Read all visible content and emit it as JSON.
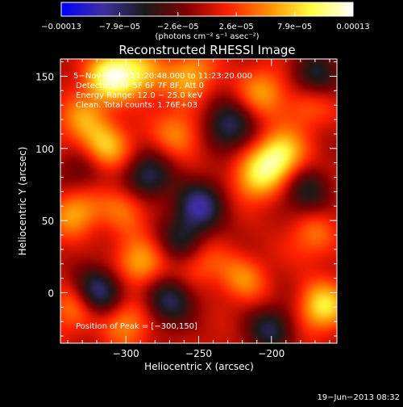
{
  "chart_data": {
    "type": "heatmap",
    "title": "Reconstructed RHESSI Image",
    "xlabel": "Heliocentric X (arcsec)",
    "ylabel": "Heliocentric Y (arcsec)",
    "xlim": [
      -345,
      -155
    ],
    "ylim": [
      -35,
      162
    ],
    "x_ticks": [
      {
        "value": -300,
        "label": "−300"
      },
      {
        "value": -250,
        "label": "−250"
      },
      {
        "value": -200,
        "label": "−200"
      }
    ],
    "y_ticks": [
      {
        "value": 0,
        "label": "0"
      },
      {
        "value": 50,
        "label": "50"
      },
      {
        "value": 100,
        "label": "100"
      },
      {
        "value": 150,
        "label": "150"
      }
    ],
    "colorbar": {
      "min": -0.00013,
      "max": 0.00013,
      "tick_labels": [
        "−0.00013",
        "−7.9e−05",
        "−2.6e−05",
        "2.6e−05",
        "7.9e−05",
        "0.00013"
      ],
      "unit_label": "(photons cm⁻² s⁻¹ asec⁻²)",
      "colors": [
        "#0000ff",
        "#4030a0",
        "#1a1a1a",
        "#800000",
        "#ff2000",
        "#ff9000",
        "#ffff40",
        "#ffffff"
      ]
    },
    "annotations": [
      "5−Nov−2004 11:20:48.000 to 11:23:20.000",
      "Detectors: 4F 5F 6F 7F 8F, Att 0",
      "Energy Range: 12.0 − 25.0 keV",
      "Clean.  Total counts: 1.76E+03"
    ],
    "peak_label": "Position of Peak = [−300,150]",
    "hot_spots": [
      {
        "x": -310,
        "y": 150,
        "v": 1.0
      },
      {
        "x": -290,
        "y": 152,
        "v": 0.6
      },
      {
        "x": -330,
        "y": 120,
        "v": 0.5
      },
      {
        "x": -315,
        "y": 100,
        "v": 0.7
      },
      {
        "x": -300,
        "y": 60,
        "v": 0.45
      },
      {
        "x": -335,
        "y": 55,
        "v": 0.6
      },
      {
        "x": -290,
        "y": 20,
        "v": 0.6
      },
      {
        "x": -335,
        "y": -10,
        "v": 0.55
      },
      {
        "x": -300,
        "y": -20,
        "v": 0.5
      },
      {
        "x": -250,
        "y": 20,
        "v": 0.4
      },
      {
        "x": -265,
        "y": 110,
        "v": 0.5
      },
      {
        "x": -255,
        "y": 150,
        "v": 0.6
      },
      {
        "x": -205,
        "y": 140,
        "v": 0.5
      },
      {
        "x": -195,
        "y": 95,
        "v": 0.9
      },
      {
        "x": -210,
        "y": 80,
        "v": 0.65
      },
      {
        "x": -170,
        "y": 40,
        "v": 0.4
      },
      {
        "x": -220,
        "y": 10,
        "v": 0.45
      },
      {
        "x": -165,
        "y": -10,
        "v": 0.8
      },
      {
        "x": -175,
        "y": 130,
        "v": 0.4
      }
    ],
    "cold_spots": [
      {
        "x": -285,
        "y": 80,
        "v": -0.7
      },
      {
        "x": -250,
        "y": 60,
        "v": -0.8
      },
      {
        "x": -230,
        "y": 115,
        "v": -0.7
      },
      {
        "x": -170,
        "y": 150,
        "v": -0.6
      },
      {
        "x": -320,
        "y": 0,
        "v": -0.9
      },
      {
        "x": -270,
        "y": -5,
        "v": -0.7
      },
      {
        "x": -200,
        "y": -25,
        "v": -0.6
      },
      {
        "x": -260,
        "y": 35,
        "v": -0.5
      },
      {
        "x": -175,
        "y": 70,
        "v": -0.5
      },
      {
        "x": -330,
        "y": 85,
        "v": -0.4
      }
    ]
  },
  "footer": {
    "date": "19−Jun−2013 08:32"
  }
}
